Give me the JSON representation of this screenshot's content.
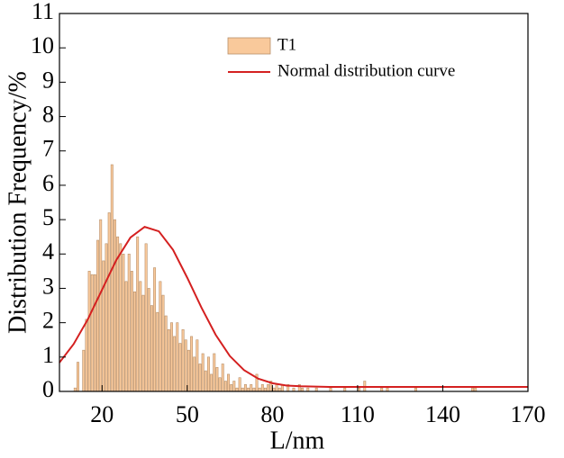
{
  "chart_data": {
    "type": "histogram",
    "xlabel": "L/nm",
    "ylabel": "Distribution Frequency/%",
    "xlim": [
      5,
      170
    ],
    "ylim": [
      0,
      11
    ],
    "xticks": [
      20,
      50,
      80,
      110,
      140,
      170
    ],
    "yticks": [
      0,
      1,
      2,
      3,
      4,
      5,
      6,
      7,
      8,
      9,
      10,
      11
    ],
    "histogram": {
      "name": "T1",
      "color": "#f9c99b",
      "edge_color": "#b8906a",
      "bins": [
        10,
        11,
        12,
        13,
        14,
        15,
        16,
        17,
        18,
        19,
        20,
        21,
        22,
        23,
        24,
        25,
        26,
        27,
        28,
        29,
        30,
        31,
        32,
        33,
        34,
        35,
        36,
        37,
        38,
        39,
        40,
        41,
        42,
        43,
        44,
        45,
        46,
        47,
        48,
        49,
        50,
        51,
        52,
        53,
        54,
        55,
        56,
        57,
        58,
        59,
        60,
        61,
        62,
        63,
        64,
        65,
        66,
        67,
        68,
        69,
        70,
        71,
        72,
        73,
        74,
        75,
        76,
        77,
        78,
        79,
        80,
        81,
        82,
        83,
        84,
        85,
        86,
        87,
        88,
        89,
        90,
        91,
        92,
        93,
        94,
        95,
        96,
        97,
        98,
        99,
        100,
        101,
        102,
        103,
        104,
        105,
        106,
        107,
        108,
        109,
        110,
        111,
        112,
        113,
        114,
        115,
        116,
        117,
        118,
        119,
        120,
        121,
        122,
        123,
        124,
        125,
        126,
        127,
        128,
        129,
        130,
        131,
        132,
        133,
        134,
        135,
        136,
        137,
        138,
        139,
        140,
        141,
        142,
        143,
        144,
        145,
        146,
        147,
        148,
        149,
        150,
        151,
        152,
        153,
        154,
        155,
        156,
        157,
        158,
        159,
        160
      ],
      "counts": [
        0.1,
        0.85,
        0,
        1.2,
        2.1,
        3.5,
        3.4,
        3.4,
        4.4,
        5.0,
        3.8,
        4.3,
        5.2,
        6.6,
        5.0,
        4.5,
        4.3,
        4.0,
        3.2,
        4.0,
        3.5,
        2.9,
        4.5,
        3.2,
        2.8,
        4.3,
        3.0,
        2.5,
        3.6,
        2.3,
        3.2,
        2.8,
        2.2,
        1.8,
        2.0,
        1.6,
        2.0,
        1.4,
        1.8,
        1.5,
        1.2,
        1.6,
        1.0,
        1.5,
        0.8,
        1.1,
        0.6,
        1.0,
        0.5,
        1.1,
        0.7,
        0.4,
        0.8,
        0.3,
        0.5,
        0.2,
        0.3,
        0.1,
        0.4,
        0.1,
        0.2,
        0.1,
        0.2,
        0.1,
        0.5,
        0.1,
        0.2,
        0.1,
        0.2,
        0.3,
        0.1,
        0.2,
        0.1,
        0.2,
        0,
        0.2,
        0,
        0.1,
        0,
        0.2,
        0.1,
        0,
        0.1,
        0,
        0,
        0.1,
        0,
        0,
        0,
        0,
        0.1,
        0,
        0,
        0,
        0,
        0.1,
        0,
        0,
        0,
        0,
        0.1,
        0,
        0.3,
        0,
        0,
        0,
        0,
        0,
        0.1,
        0,
        0.1,
        0,
        0,
        0,
        0,
        0,
        0,
        0,
        0,
        0,
        0.1,
        0,
        0,
        0,
        0,
        0,
        0,
        0,
        0,
        0,
        0,
        0,
        0,
        0,
        0,
        0,
        0,
        0,
        0,
        0,
        0.1,
        0.1,
        0,
        0,
        0,
        0,
        0,
        0,
        0,
        0
      ]
    },
    "curve": {
      "name": "Normal distribution curve",
      "color": "#d42020",
      "x": [
        5,
        10,
        15,
        20,
        25,
        30,
        35,
        40,
        45,
        50,
        55,
        60,
        65,
        70,
        75,
        80,
        85,
        90,
        100,
        120,
        140,
        160,
        170
      ],
      "y": [
        0.84,
        1.38,
        2.1,
        2.96,
        3.82,
        4.48,
        4.79,
        4.66,
        4.12,
        3.31,
        2.44,
        1.65,
        1.03,
        0.62,
        0.37,
        0.24,
        0.17,
        0.15,
        0.13,
        0.13,
        0.13,
        0.13,
        0.13
      ]
    }
  }
}
